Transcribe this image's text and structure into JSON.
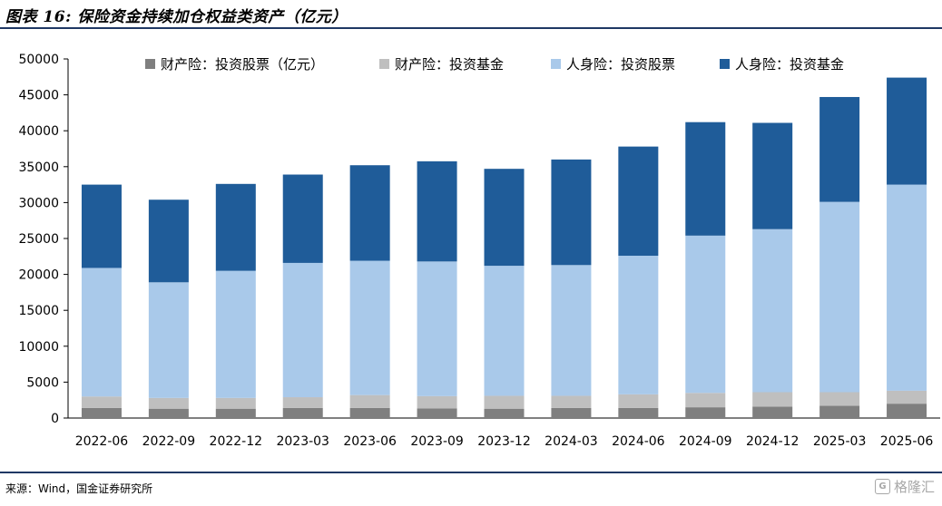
{
  "header": {
    "title": "图表 16: 保险资金持续加仓权益类资产（亿元）"
  },
  "footer": {
    "source": "来源：Wind，国金证券研究所",
    "watermark": "格隆汇"
  },
  "chart_data": {
    "type": "bar",
    "stacked": true,
    "title": "",
    "xlabel": "",
    "ylabel": "",
    "ylim": [
      0,
      50000
    ],
    "yticks": [
      "0",
      "5000",
      "10000",
      "15000",
      "20000",
      "25000",
      "30000",
      "35000",
      "40000",
      "45000",
      "50000"
    ],
    "grid": false,
    "legend_position": "top",
    "categories": [
      "2022-06",
      "2022-09",
      "2022-12",
      "2023-03",
      "2023-06",
      "2023-09",
      "2023-12",
      "2024-03",
      "2024-06",
      "2024-09",
      "2024-12",
      "2025-03",
      "2025-06"
    ],
    "series": [
      {
        "name": "财产险：投资股票（亿元）",
        "color": "#7f7f7f",
        "values": [
          1400,
          1300,
          1300,
          1400,
          1400,
          1350,
          1300,
          1400,
          1400,
          1500,
          1600,
          1700,
          2000
        ]
      },
      {
        "name": "财产险：投资基金",
        "color": "#bfbfbf",
        "values": [
          1600,
          1500,
          1500,
          1500,
          1800,
          1700,
          1800,
          1700,
          1900,
          2000,
          2000,
          1900,
          1800
        ]
      },
      {
        "name": "人身险：投资股票",
        "color": "#a9c9ea",
        "values": [
          17900,
          16100,
          17700,
          18700,
          18700,
          18750,
          18100,
          18200,
          19300,
          21900,
          22700,
          26500,
          28700
        ]
      },
      {
        "name": "人身险：投资基金",
        "color": "#1f5c99",
        "values": [
          11600,
          11500,
          12100,
          12300,
          13300,
          13950,
          13500,
          14700,
          15200,
          15800,
          14800,
          14600,
          14900
        ]
      }
    ]
  }
}
